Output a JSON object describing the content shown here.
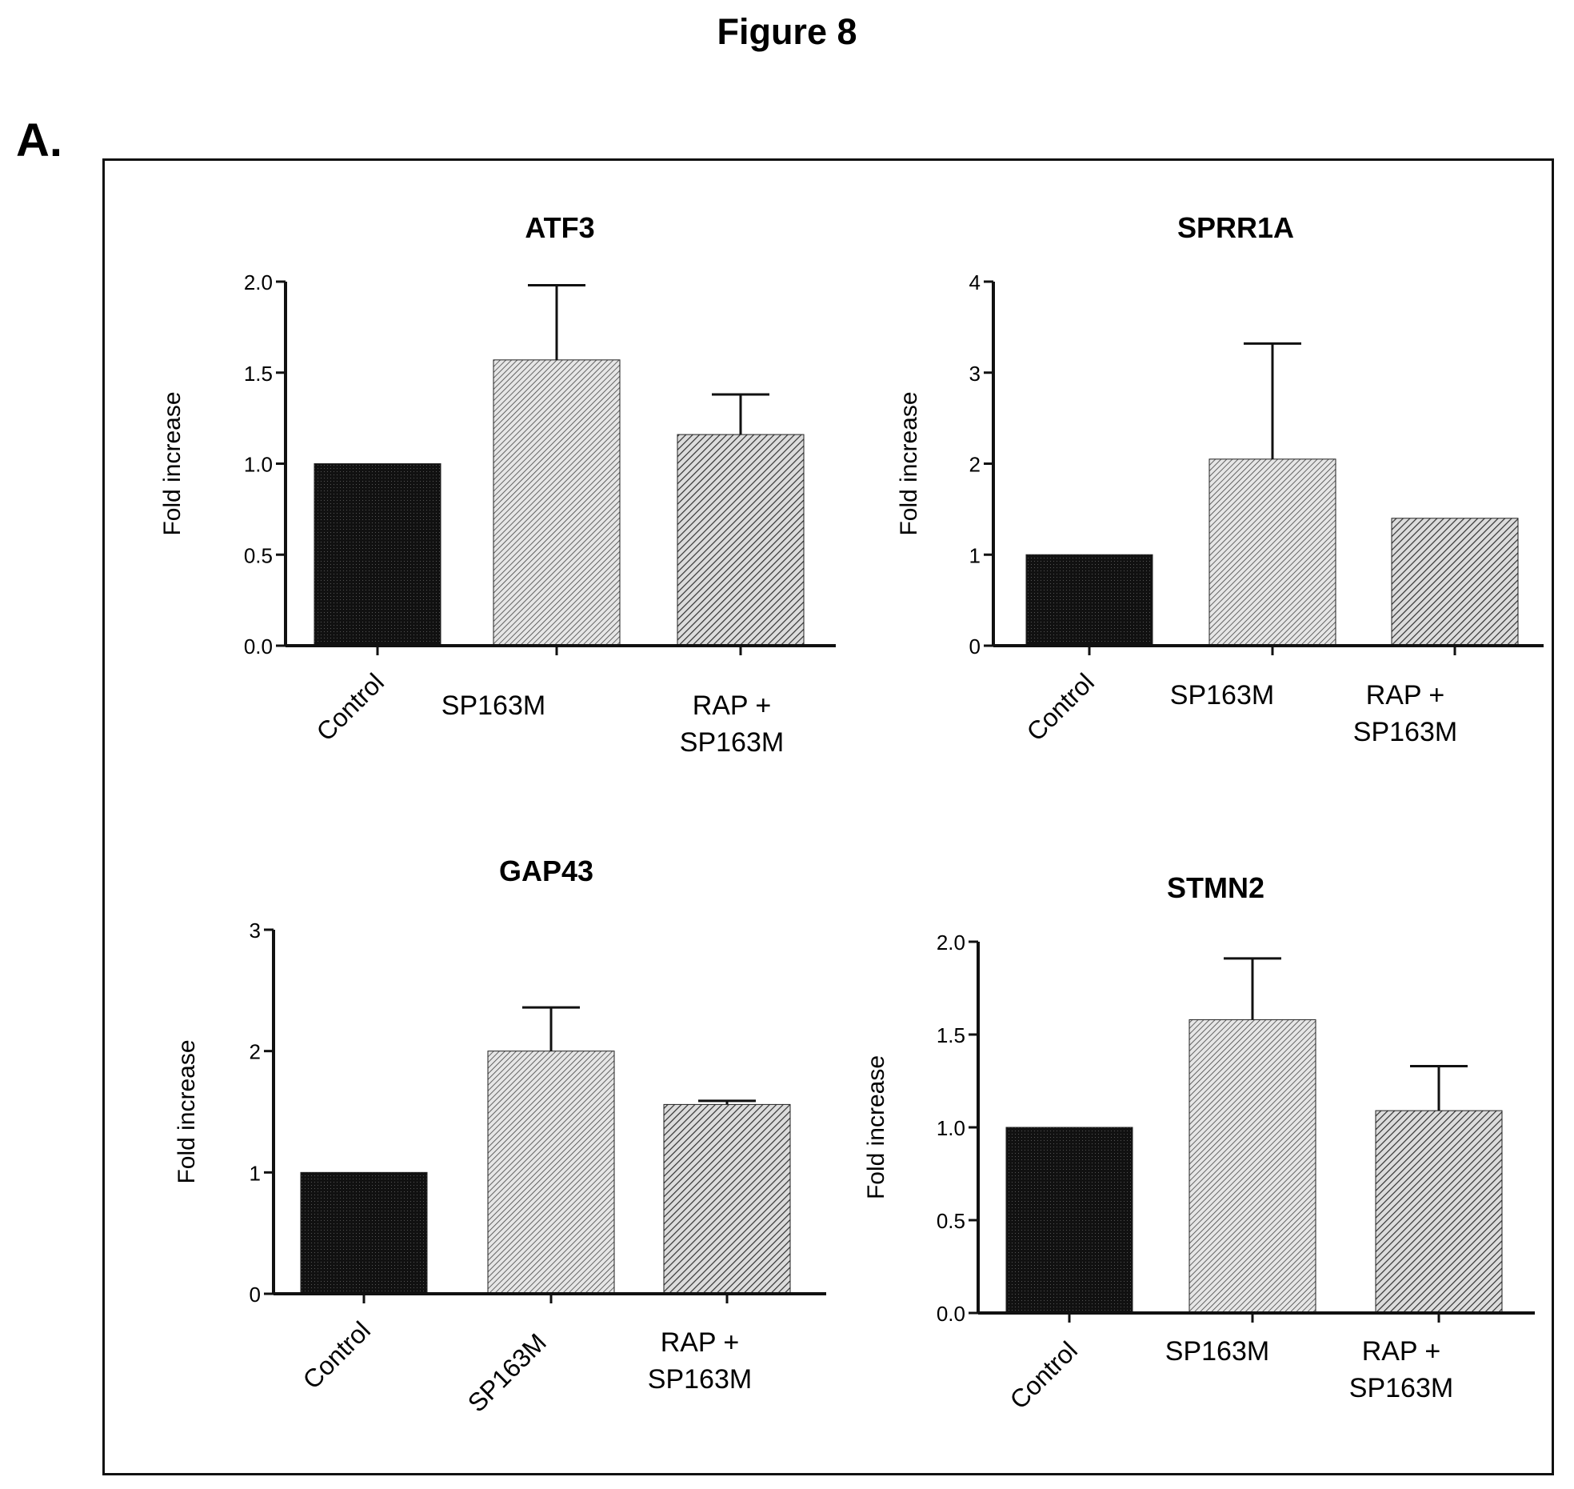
{
  "figure": {
    "title": "Figure 8",
    "panel_label": "A."
  },
  "colors": {
    "control_fill": "#111111",
    "hatch": "#444444",
    "frame": "#111111"
  },
  "chart_data": [
    {
      "type": "bar",
      "title": "ATF3",
      "ylabel": "Fold increase",
      "categories": [
        "Control",
        "SP163M",
        "RAP + SP163M"
      ],
      "values": [
        1.0,
        1.57,
        1.16
      ],
      "errors": [
        0,
        0.41,
        0.22
      ],
      "ylim": [
        0,
        2.0
      ],
      "yticks": [
        "0.0",
        "0.5",
        "1.0",
        "1.5",
        "2.0"
      ],
      "grid": false
    },
    {
      "type": "bar",
      "title": "SPRR1A",
      "ylabel": "Fold increase",
      "categories": [
        "Control",
        "SP163M",
        "RAP + SP163M"
      ],
      "values": [
        1.0,
        2.05,
        1.4
      ],
      "errors": [
        0,
        1.27,
        0
      ],
      "ylim": [
        0,
        4
      ],
      "yticks": [
        "0",
        "1",
        "2",
        "3",
        "4"
      ],
      "grid": false
    },
    {
      "type": "bar",
      "title": "GAP43",
      "ylabel": "Fold increase",
      "categories": [
        "Control",
        "SP163M",
        "RAP + SP163M"
      ],
      "values": [
        1.0,
        2.0,
        1.56
      ],
      "errors": [
        0,
        0.36,
        0.03
      ],
      "ylim": [
        0,
        3
      ],
      "yticks": [
        "0",
        "1",
        "2",
        "3"
      ],
      "grid": false
    },
    {
      "type": "bar",
      "title": "STMN2",
      "ylabel": "Fold increase",
      "categories": [
        "Control",
        "SP163M",
        "RAP + SP163M"
      ],
      "values": [
        1.0,
        1.58,
        1.09
      ],
      "errors": [
        0,
        0.33,
        0.24
      ],
      "ylim": [
        0,
        2.0
      ],
      "yticks": [
        "0.0",
        "0.5",
        "1.0",
        "1.5",
        "2.0"
      ],
      "grid": false
    }
  ]
}
